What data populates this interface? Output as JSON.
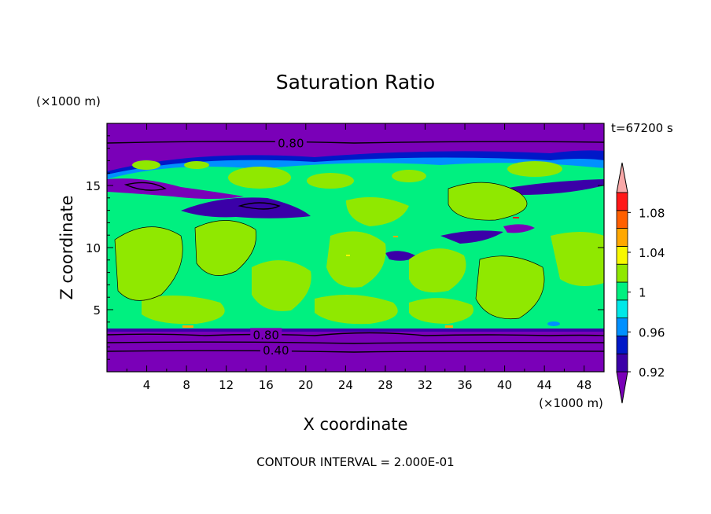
{
  "chart_data": {
    "type": "heatmap",
    "title": "Saturation Ratio",
    "xlabel": "X coordinate",
    "ylabel": "Z coordinate",
    "x_unit": "(×1000 m)",
    "y_unit": "(×1000 m)",
    "time_label": "t=67200 s",
    "footer": "CONTOUR INTERVAL = 2.000E-01",
    "xlim": [
      0,
      50
    ],
    "ylim": [
      0,
      20
    ],
    "x_ticks": [
      4,
      8,
      12,
      16,
      20,
      24,
      28,
      32,
      36,
      40,
      44,
      48
    ],
    "y_ticks": [
      5,
      10,
      15
    ],
    "colorbar": {
      "levels": [
        0.92,
        0.94,
        0.96,
        0.98,
        1.0,
        1.02,
        1.04,
        1.06,
        1.08,
        1.1
      ],
      "tick_labels": [
        "0.92",
        "0.96",
        "1",
        "1.04",
        "1.08"
      ],
      "tick_values": [
        0.92,
        0.96,
        1.0,
        1.04,
        1.08
      ],
      "colors": [
        "#7a00b8",
        "#3b00a8",
        "#0018c8",
        "#0090ff",
        "#00e8e8",
        "#00f080",
        "#90e800",
        "#f8f800",
        "#ffa800",
        "#ff6000",
        "#ff1818",
        "#f8a8a8"
      ]
    },
    "contour_labels": [
      {
        "text": "0.80",
        "x": 18.5,
        "y": 18.4
      },
      {
        "text": "0.80",
        "x": 16,
        "y": 2.95
      },
      {
        "text": "0.40",
        "x": 17,
        "y": 1.7
      }
    ]
  }
}
